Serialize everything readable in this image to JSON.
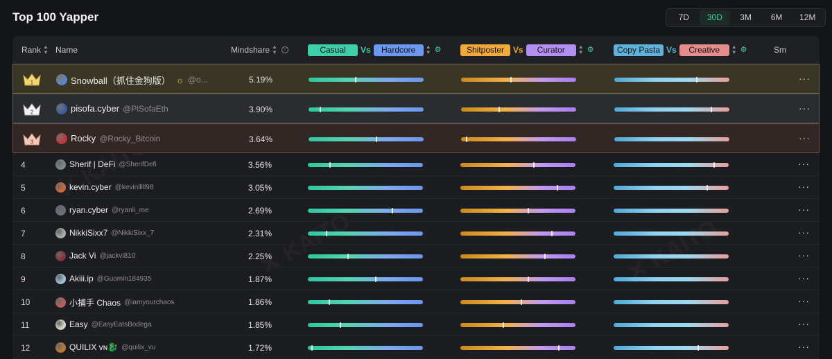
{
  "title": "Top 100 Yapper",
  "time_tabs": [
    {
      "label": "7D",
      "active": false
    },
    {
      "label": "30D",
      "active": true
    },
    {
      "label": "3M",
      "active": false
    },
    {
      "label": "6M",
      "active": false
    },
    {
      "label": "12M",
      "active": false
    }
  ],
  "header": {
    "rank": "Rank",
    "name": "Name",
    "mindshare": "Mindshare",
    "last_col": "Sm",
    "vs": "Vs",
    "pair_a": {
      "left": "Casual",
      "right": "Hardcore",
      "left_color": "#3ecfa8",
      "right_color": "#6d98f0"
    },
    "pair_b": {
      "left": "Shitposter",
      "right": "Curator",
      "left_color": "#f0a93a",
      "right_color": "#b48ef0"
    },
    "pair_c": {
      "left": "Copy Pasta",
      "right": "Creative",
      "left_color": "#5fb3db",
      "right_color": "#e58c8c"
    }
  },
  "rows": [
    {
      "rank": "1",
      "name": "Snowball（抓住金狗版）",
      "handle": "@o...",
      "mindshare": "5.19%",
      "a": 0.41,
      "b": 0.43,
      "c": 0.72,
      "avatar": "#5a86c9"
    },
    {
      "rank": "2",
      "name": "pisofa.cyber",
      "handle": "@PiSofaEth",
      "mindshare": "3.90%",
      "a": 0.1,
      "b": 0.33,
      "c": 0.85,
      "avatar": "#3a5f9f"
    },
    {
      "rank": "3",
      "name": "Rocky",
      "handle": "@Rocky_Bitcoin",
      "mindshare": "3.64%",
      "a": 0.59,
      "b": 0.04,
      "c": 0.0,
      "avatar": "#c0333b"
    },
    {
      "rank": "4",
      "name": "Sherif | DeFi",
      "handle": "@SherifDefi",
      "mindshare": "3.56%",
      "a": 0.19,
      "b": 0.64,
      "c": 0.88,
      "avatar": "#7d8b86"
    },
    {
      "rank": "5",
      "name": "kevin.cyber",
      "handle": "@kevinlllll98",
      "mindshare": "3.05%",
      "a": 0.0,
      "b": 0.85,
      "c": 0.82,
      "avatar": "#d0663a"
    },
    {
      "rank": "6",
      "name": "ryan.cyber",
      "handle": "@ryanli_me",
      "mindshare": "2.69%",
      "a": 0.74,
      "b": 0.59,
      "c": 0.0,
      "avatar": "#6a6f78"
    },
    {
      "rank": "7",
      "name": "NikkiSixx7",
      "handle": "@NikkiSixx_7",
      "mindshare": "2.31%",
      "a": 0.16,
      "b": 0.8,
      "c": 0.0,
      "avatar": "#a7b3a4"
    },
    {
      "rank": "8",
      "name": "Jack Vi",
      "handle": "@jackvi810",
      "mindshare": "2.25%",
      "a": 0.35,
      "b": 0.74,
      "c": 0.0,
      "avatar": "#8c2f3c"
    },
    {
      "rank": "9",
      "name": "Akiii.ip",
      "handle": "@Guomin184935",
      "mindshare": "1.87%",
      "a": 0.59,
      "b": 0.59,
      "c": 0.0,
      "avatar": "#9fc3d8"
    },
    {
      "rank": "10",
      "name": "小捕手 Chaos",
      "handle": "@iamyourchaos",
      "mindshare": "1.86%",
      "a": 0.18,
      "b": 0.53,
      "c": 0.0,
      "avatar": "#c45b5b"
    },
    {
      "rank": "11",
      "name": "Easy",
      "handle": "@EasyEatsBodega",
      "mindshare": "1.85%",
      "a": 0.28,
      "b": 0.37,
      "c": 0.0,
      "avatar": "#d8d8c8"
    },
    {
      "rank": "12",
      "name": "QUILIX ᴠɴ🐉",
      "handle": "@quilix_vu",
      "mindshare": "1.72%",
      "a": 0.03,
      "b": 0.86,
      "c": 0.74,
      "avatar": "#c07a30"
    }
  ]
}
